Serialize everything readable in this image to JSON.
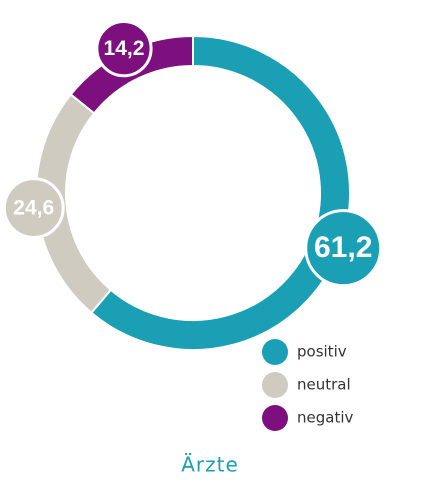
{
  "chart_data": {
    "type": "donut",
    "title": "Ärzte",
    "categories": [
      "positiv",
      "neutral",
      "negativ"
    ],
    "values": [
      61.2,
      24.6,
      14.2
    ],
    "value_labels": [
      "61,2",
      "24,6",
      "14,2"
    ],
    "colors": [
      "#1a9fb5",
      "#d0cbc0",
      "#7d0f7e"
    ]
  }
}
